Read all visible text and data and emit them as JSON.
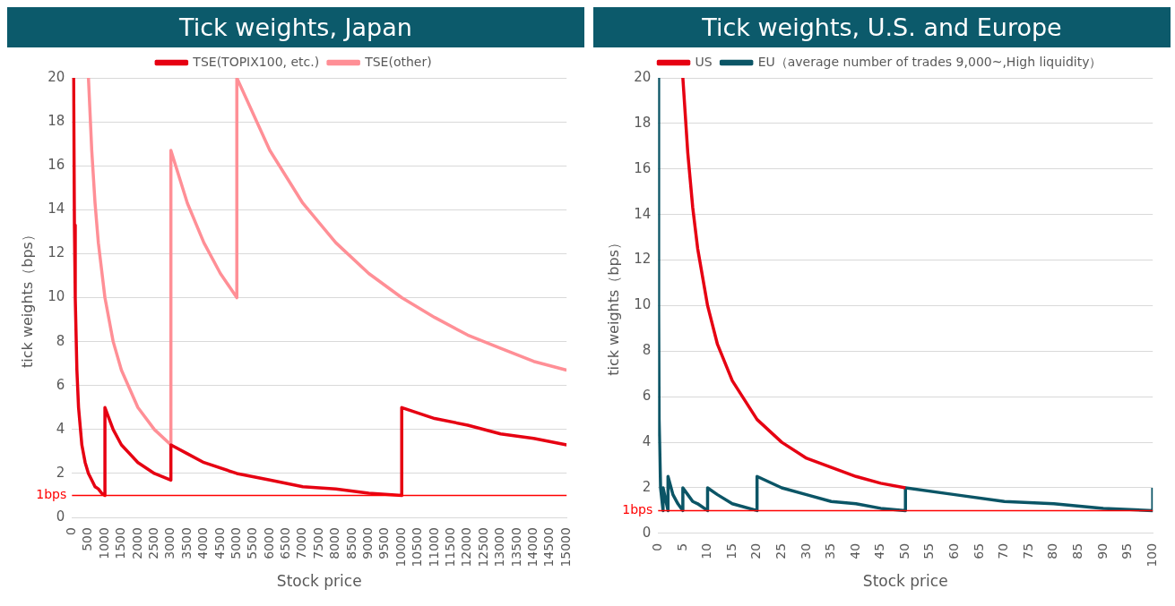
{
  "chart_data": [
    {
      "type": "line",
      "title": "Tick weights, Japan",
      "xlabel": "Stock price",
      "ylabel": "tick weights（bps）",
      "legend": "top",
      "grid": "y",
      "marker": "none",
      "xlim": [
        0,
        15000
      ],
      "xticks": [
        0,
        500,
        1000,
        1500,
        2000,
        2500,
        3000,
        3500,
        4000,
        4500,
        5000,
        5500,
        6000,
        6500,
        7000,
        7500,
        8000,
        8500,
        9000,
        9500,
        10000,
        10500,
        11000,
        11500,
        12000,
        12500,
        13000,
        13500,
        14000,
        14500,
        15000
      ],
      "ylim": [
        0,
        20
      ],
      "yticks": [
        0,
        2,
        4,
        6,
        8,
        10,
        12,
        14,
        16,
        18,
        20
      ],
      "ref_lines": [
        {
          "axis": "y",
          "value": 1,
          "label": "1bps",
          "color": "#ff0000"
        }
      ],
      "series": [
        {
          "name": "TSE(TOPIX100, etc.)",
          "color": "#e60012",
          "x": [
            50,
            75,
            100,
            150,
            200,
            300,
            400,
            500,
            600,
            700,
            800,
            900,
            1000,
            1000,
            1250,
            1500,
            2000,
            2500,
            3000,
            3000,
            3500,
            4000,
            5000,
            6000,
            7000,
            8000,
            9000,
            10000,
            10000,
            11000,
            12000,
            13000,
            14000,
            15000
          ],
          "values": [
            20,
            13.3,
            10,
            6.7,
            5,
            3.3,
            2.5,
            2,
            1.7,
            1.4,
            1.3,
            1.1,
            1,
            5,
            4,
            3.3,
            2.5,
            2,
            1.7,
            3.3,
            2.9,
            2.5,
            2,
            1.7,
            1.4,
            1.3,
            1.1,
            1,
            5,
            4.5,
            4.2,
            3.8,
            3.6,
            3.3
          ]
        },
        {
          "name": "TSE(other)",
          "color": "#ff8f96",
          "x": [
            500,
            600,
            700,
            800,
            1000,
            1250,
            1500,
            2000,
            2500,
            3000,
            3000,
            3500,
            4000,
            4500,
            5000,
            5000,
            6000,
            7000,
            8000,
            9000,
            10000,
            11000,
            12000,
            13000,
            14000,
            15000
          ],
          "values": [
            20,
            16.7,
            14.3,
            12.5,
            10,
            8,
            6.7,
            5,
            4,
            3.3,
            16.7,
            14.3,
            12.5,
            11.1,
            10,
            20,
            16.7,
            14.3,
            12.5,
            11.1,
            10,
            9.1,
            8.3,
            7.7,
            7.1,
            6.7
          ]
        }
      ]
    },
    {
      "type": "line",
      "title": "Tick weights, U.S. and Europe",
      "xlabel": "Stock price",
      "ylabel": "tick weights（bps）",
      "legend": "top",
      "grid": "y",
      "marker": "none",
      "xlim": [
        0,
        100
      ],
      "xticks": [
        0,
        5,
        10,
        15,
        20,
        25,
        30,
        35,
        40,
        45,
        50,
        55,
        60,
        65,
        70,
        75,
        80,
        85,
        90,
        95,
        100
      ],
      "ylim": [
        0,
        20
      ],
      "yticks": [
        0,
        2,
        4,
        6,
        8,
        10,
        12,
        14,
        16,
        18,
        20
      ],
      "ref_lines": [
        {
          "axis": "y",
          "value": 1,
          "label": "1bps",
          "color": "#ff0000"
        }
      ],
      "series": [
        {
          "name": "US",
          "color": "#e60012",
          "x": [
            5,
            6,
            7,
            8,
            10,
            12,
            15,
            20,
            25,
            30,
            35,
            40,
            45,
            50
          ],
          "values": [
            20,
            16.7,
            14.3,
            12.5,
            10,
            8.3,
            6.7,
            5,
            4,
            3.3,
            2.9,
            2.5,
            2.2,
            2
          ]
        },
        {
          "name": "EU（average number of trades 9,000~,High liquidity）",
          "color": "#0b5566",
          "x": [
            0.05,
            0.1,
            0.2,
            0.5,
            1,
            1,
            2,
            2,
            3,
            4,
            5,
            5,
            6,
            7,
            8,
            10,
            10,
            12,
            15,
            20,
            20,
            25,
            30,
            35,
            40,
            45,
            50,
            50,
            60,
            70,
            80,
            90,
            100,
            100
          ],
          "values": [
            20,
            10,
            5,
            2,
            1,
            2,
            1,
            2.5,
            1.7,
            1.3,
            1,
            2,
            1.7,
            1.4,
            1.3,
            1,
            2,
            1.7,
            1.3,
            1,
            2.5,
            2,
            1.7,
            1.4,
            1.3,
            1.1,
            1,
            2,
            1.7,
            1.4,
            1.3,
            1.1,
            1,
            2
          ]
        }
      ]
    }
  ]
}
